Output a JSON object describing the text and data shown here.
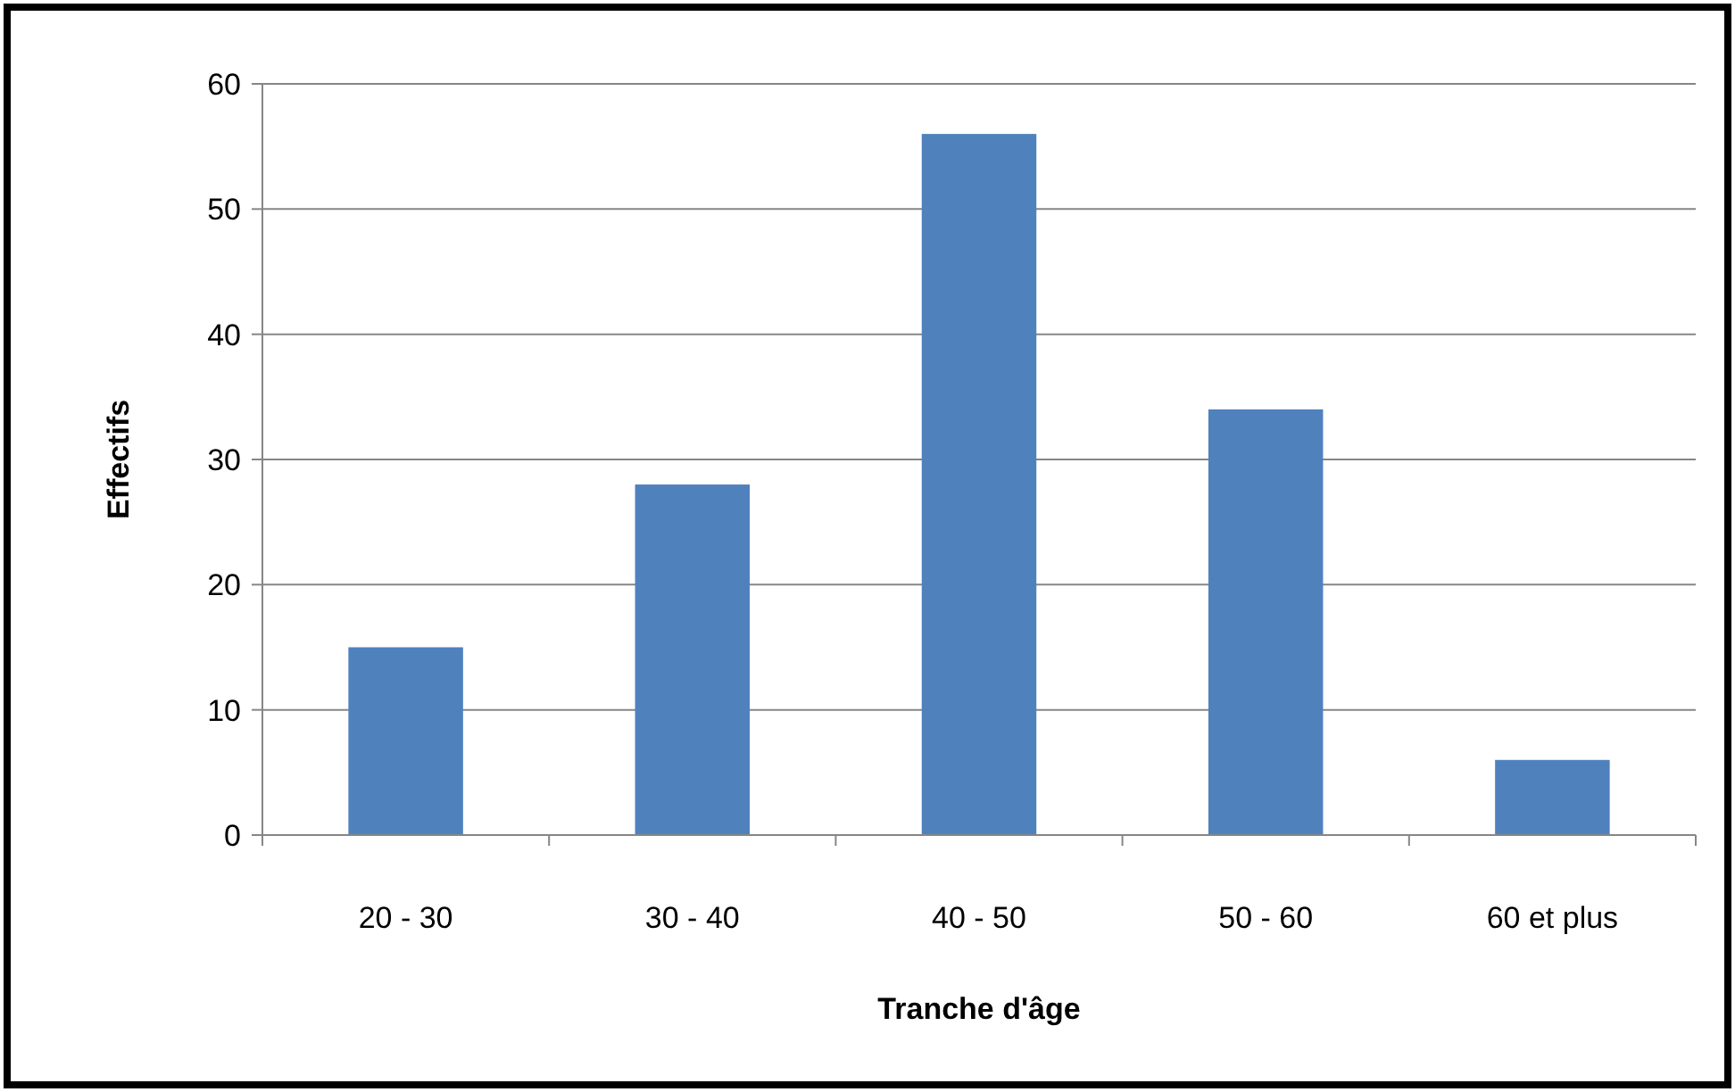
{
  "chart_data": {
    "type": "bar",
    "xlabel": "Tranche d'âge",
    "ylabel": "Effectifs",
    "categories": [
      "20 - 30",
      "30 - 40",
      "40 - 50",
      "50 - 60",
      "60 et plus"
    ],
    "values": [
      15,
      28,
      56,
      34,
      6
    ],
    "color": "#4f81bd",
    "ylim": [
      0,
      60
    ],
    "yticks": [
      0,
      10,
      20,
      30,
      40,
      50,
      60
    ],
    "grid": "y"
  }
}
